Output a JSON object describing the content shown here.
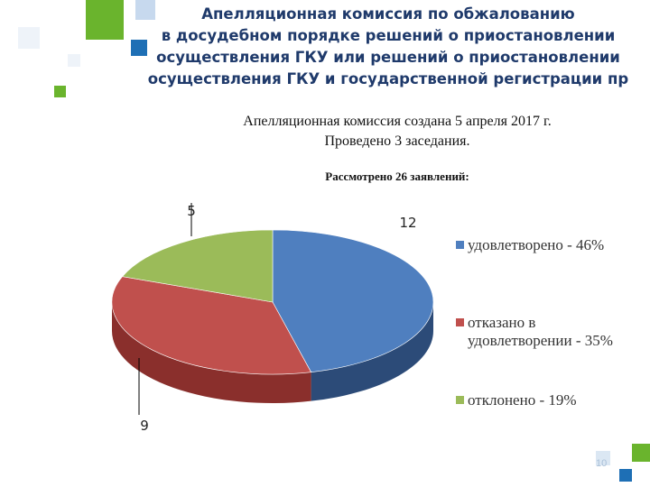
{
  "slide": {
    "title_lines": [
      "Апелляционная комиссия по обжалованию",
      "в досудебном порядке решений о приостановлении",
      "осуществления ГКУ или решений о приостановлении",
      "осуществления ГКУ и государственной регистрации пр"
    ],
    "info_lines": [
      "Апелляционная комиссия создана 5 апреля 2017 г.",
      "Проведено 3 заседания."
    ],
    "page_number": "10"
  },
  "colors": {
    "title": "#1f3a6b",
    "deco_green": "#6ab42d",
    "deco_blue": "#1e6fb5",
    "deco_light_blue": "#c7d9ee"
  },
  "chart_data": {
    "type": "pie",
    "title": "Рассмотрено 26 заявлений:",
    "slices": [
      {
        "label": "удовлетворено - 46%",
        "value": 12,
        "data_label": "12",
        "color": "#4f7fbf",
        "side_color": "#2c4b78"
      },
      {
        "label": "отказано в удовлетворении - 35%",
        "value": 9,
        "data_label": "9",
        "color": "#c0504d",
        "side_color": "#8a2f2c"
      },
      {
        "label": "отклонено - 19%",
        "value": 5,
        "data_label": "5",
        "color": "#9bbb59",
        "side_color": "#6b8a33"
      }
    ],
    "legend": {
      "position": "right",
      "items": [
        {
          "lines": [
            "удовлетворено - 46%"
          ],
          "color": "#4f7fbf"
        },
        {
          "lines": [
            "отказано в",
            "удовлетворении - 35%"
          ],
          "color": "#c0504d"
        },
        {
          "lines": [
            "отклонено - 19%"
          ],
          "color": "#9bbb59"
        }
      ]
    }
  }
}
